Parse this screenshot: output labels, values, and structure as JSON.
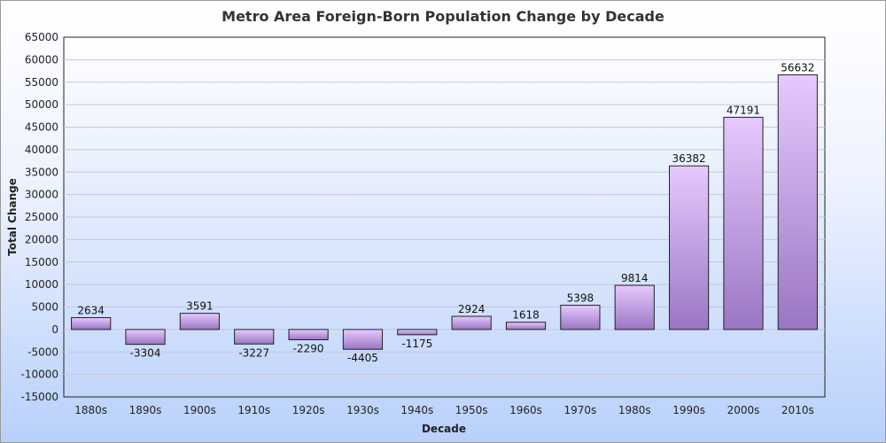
{
  "chart_data": {
    "type": "bar",
    "title": "Metro Area Foreign-Born Population Change by Decade",
    "xlabel": "Decade",
    "ylabel": "Total Change",
    "categories": [
      "1880s",
      "1890s",
      "1900s",
      "1910s",
      "1920s",
      "1930s",
      "1940s",
      "1950s",
      "1960s",
      "1970s",
      "1980s",
      "1990s",
      "2000s",
      "2010s"
    ],
    "values": [
      2634,
      -3304,
      3591,
      -3227,
      -2290,
      -4405,
      -1175,
      2924,
      1618,
      5398,
      9814,
      36382,
      47191,
      56632
    ],
    "ylim": [
      -15000,
      65000
    ],
    "yticks": [
      -15000,
      -10000,
      -5000,
      0,
      5000,
      10000,
      15000,
      20000,
      25000,
      30000,
      35000,
      40000,
      45000,
      50000,
      55000,
      60000,
      65000
    ],
    "grid": true,
    "legend": "none",
    "colors": {
      "bar_top": "#e6c9ff",
      "bar_bottom": "#9a76c2",
      "bar_stroke": "#222222",
      "plot_bg_top": "#ffffff",
      "plot_bg_bottom": "#c2d6fb",
      "grid": "#c8c8d8"
    }
  }
}
